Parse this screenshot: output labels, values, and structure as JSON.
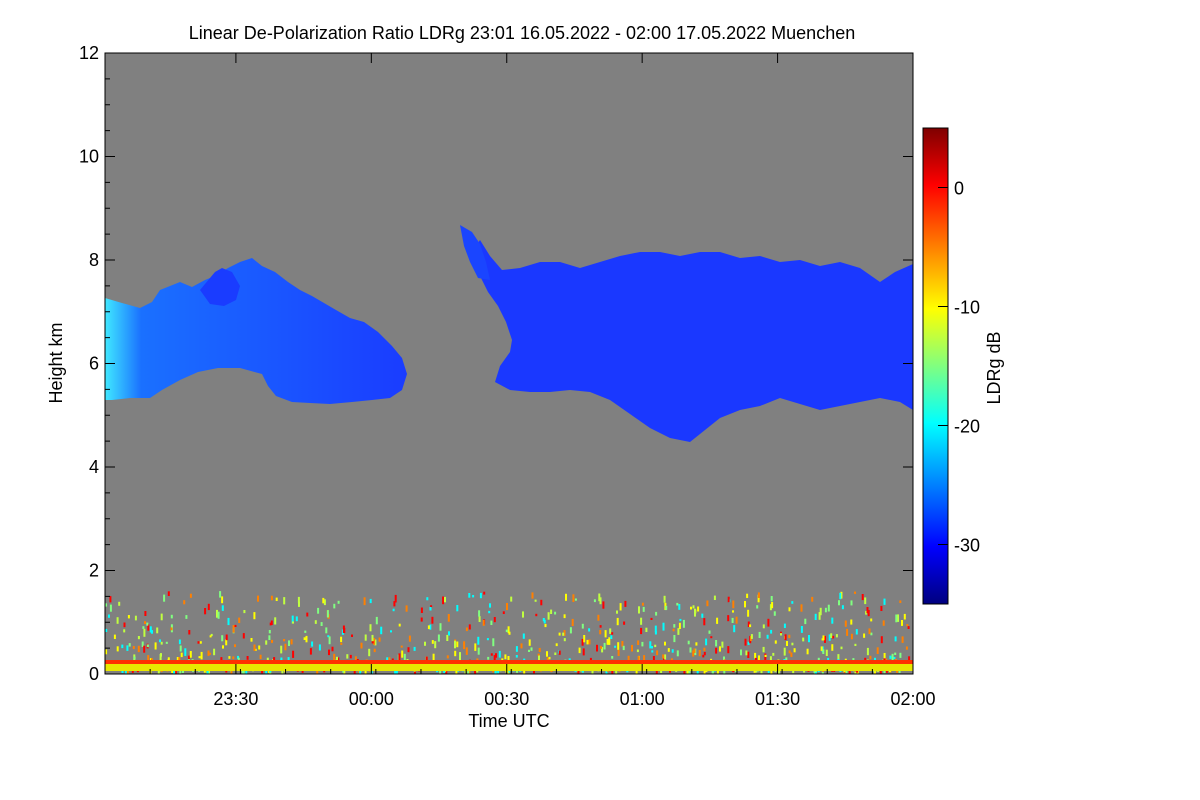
{
  "chart_data": {
    "type": "heatmap",
    "title": "Linear De-Polarization Ratio LDRg   23:01 16.05.2022 - 02:00 17.05.2022 Muenchen",
    "xlabel": "Time UTC",
    "ylabel": "Height km",
    "xlim": [
      "23:01",
      "02:00"
    ],
    "ylim": [
      0,
      12
    ],
    "x_ticks": [
      "23:30",
      "00:00",
      "00:30",
      "01:00",
      "01:30",
      "02:00"
    ],
    "y_ticks": [
      "0",
      "2",
      "4",
      "6",
      "8",
      "10",
      "12"
    ],
    "background_color": "#808080",
    "colorbar": {
      "label": "LDRg dB",
      "range": [
        -35,
        5
      ],
      "ticks": [
        "0",
        "-10",
        "-20",
        "-30"
      ],
      "colormap": [
        "#00007f",
        "#0000ff",
        "#0080ff",
        "#00ffff",
        "#80ff80",
        "#ffff00",
        "#ff8000",
        "#ff0000",
        "#7f0000"
      ]
    },
    "cloud_layers": [
      {
        "time_start": "23:01",
        "time_end": "00:08",
        "base_km": 5.3,
        "top_km": 8.2,
        "ldr_db": -28,
        "peak_ldr_db": -20
      },
      {
        "time_start": "00:20",
        "time_end": "02:00",
        "base_km": 4.5,
        "top_km": 9.0,
        "ldr_db": -30
      }
    ],
    "near_ground_layer": {
      "time_start": "23:01",
      "time_end": "02:00",
      "base_km": 0.0,
      "top_km": 1.5,
      "ldr_db_range": [
        -20,
        5
      ]
    }
  }
}
